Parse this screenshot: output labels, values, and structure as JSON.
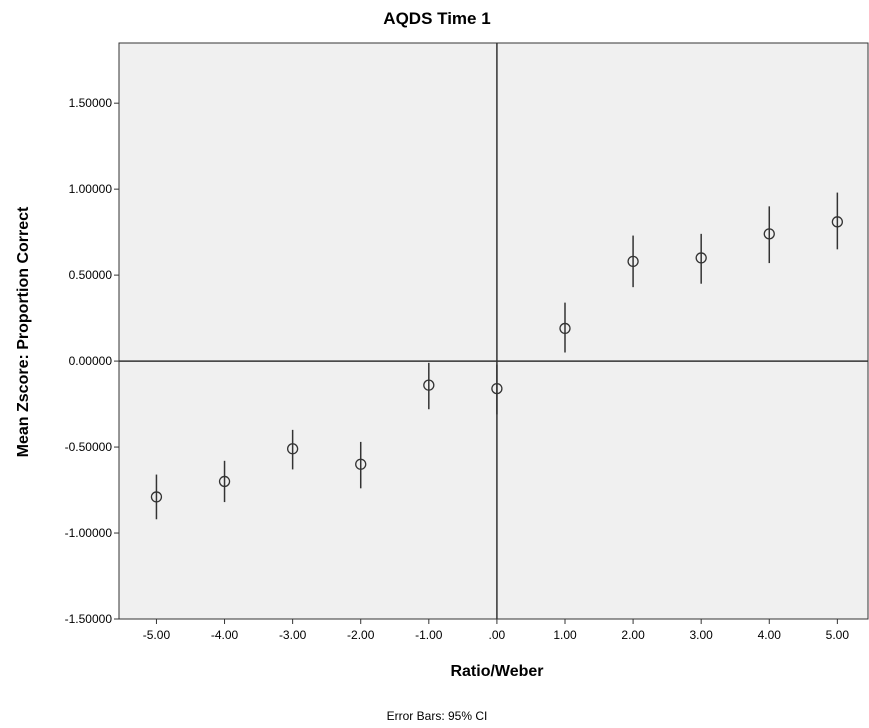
{
  "chart_data": {
    "type": "scatter",
    "title": "AQDS Time 1",
    "xlabel": "Ratio/Weber",
    "ylabel": "Mean Zscore:  Proportion Correct",
    "footnote": "Error Bars: 95% CI",
    "xlim": [
      -5.55,
      5.45
    ],
    "ylim": [
      -1.5,
      1.85
    ],
    "x_ticks": [
      -5,
      -4,
      -3,
      -2,
      -1,
      0,
      1,
      2,
      3,
      4,
      5
    ],
    "x_tick_labels": [
      "-5.00",
      "-4.00",
      "-3.00",
      "-2.00",
      "-1.00",
      ".00",
      "1.00",
      "2.00",
      "3.00",
      "4.00",
      "5.00"
    ],
    "y_ticks": [
      -1.5,
      -1.0,
      -0.5,
      0.0,
      0.5,
      1.0,
      1.5
    ],
    "y_tick_labels": [
      "-1.50000",
      "-1.00000",
      "-0.50000",
      "0.00000",
      "0.50000",
      "1.00000",
      "1.50000"
    ],
    "reference_lines": {
      "x": 0,
      "y": 0
    },
    "grid": false,
    "colors": {
      "plot_background": "#f0f0f0",
      "marker": "#333333",
      "error_bar": "#333333"
    },
    "points": [
      {
        "x": -5,
        "y": -0.79,
        "ci_low": -0.92,
        "ci_high": -0.66
      },
      {
        "x": -4,
        "y": -0.7,
        "ci_low": -0.82,
        "ci_high": -0.58
      },
      {
        "x": -3,
        "y": -0.51,
        "ci_low": -0.63,
        "ci_high": -0.4
      },
      {
        "x": -2,
        "y": -0.6,
        "ci_low": -0.74,
        "ci_high": -0.47
      },
      {
        "x": -1,
        "y": -0.14,
        "ci_low": -0.28,
        "ci_high": -0.01
      },
      {
        "x": 0,
        "y": -0.16,
        "ci_low": -0.31,
        "ci_high": -0.02
      },
      {
        "x": 1,
        "y": 0.19,
        "ci_low": 0.05,
        "ci_high": 0.34
      },
      {
        "x": 2,
        "y": 0.58,
        "ci_low": 0.43,
        "ci_high": 0.73
      },
      {
        "x": 3,
        "y": 0.6,
        "ci_low": 0.45,
        "ci_high": 0.74
      },
      {
        "x": 4,
        "y": 0.74,
        "ci_low": 0.57,
        "ci_high": 0.9
      },
      {
        "x": 5,
        "y": 0.81,
        "ci_low": 0.65,
        "ci_high": 0.98
      }
    ]
  }
}
